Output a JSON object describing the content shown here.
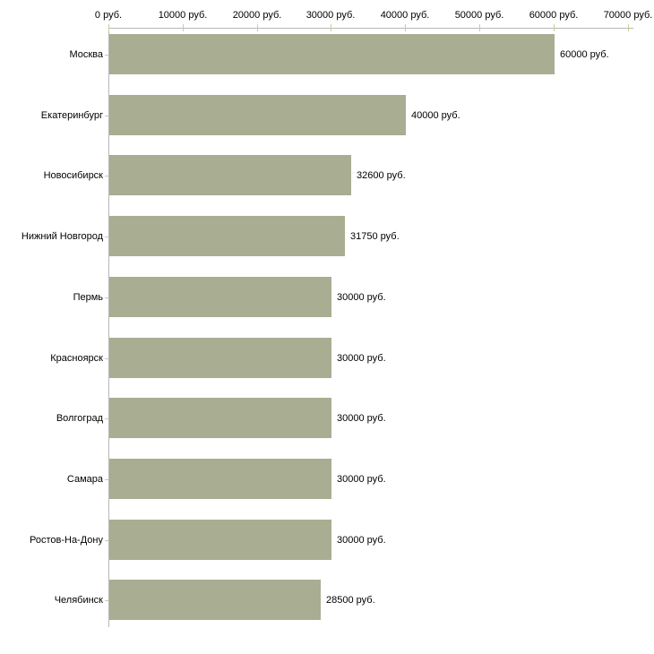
{
  "chart_data": {
    "type": "bar",
    "orientation": "horizontal",
    "title": "",
    "categories": [
      "Москва",
      "Екатеринбург",
      "Новосибирск",
      "Нижний Новгород",
      "Пермь",
      "Красноярск",
      "Волгоград",
      "Самара",
      "Ростов-На-Дону",
      "Челябинск"
    ],
    "values": [
      60000,
      40000,
      32600,
      31750,
      30000,
      30000,
      30000,
      30000,
      30000,
      28500
    ],
    "value_labels": [
      "60000 руб.",
      "40000 руб.",
      "32600 руб.",
      "31750 руб.",
      "30000 руб.",
      "30000 руб.",
      "30000 руб.",
      "30000 руб.",
      "30000 руб.",
      "28500 руб."
    ],
    "x_tick_values": [
      0,
      10000,
      20000,
      30000,
      40000,
      50000,
      60000,
      70000
    ],
    "x_tick_labels": [
      "0 руб.",
      "10000 руб.",
      "20000 руб.",
      "30000 руб.",
      "40000 руб.",
      "50000 руб.",
      "60000 руб.",
      "70000 руб."
    ],
    "xlim": [
      0,
      70000
    ],
    "unit": "руб.",
    "legend": null,
    "grid": false,
    "colors": {
      "bar": "#a9ad92",
      "axis": "#b8b8b8",
      "tick": "#cccc99",
      "text": "#000000",
      "background": "#ffffff"
    }
  }
}
